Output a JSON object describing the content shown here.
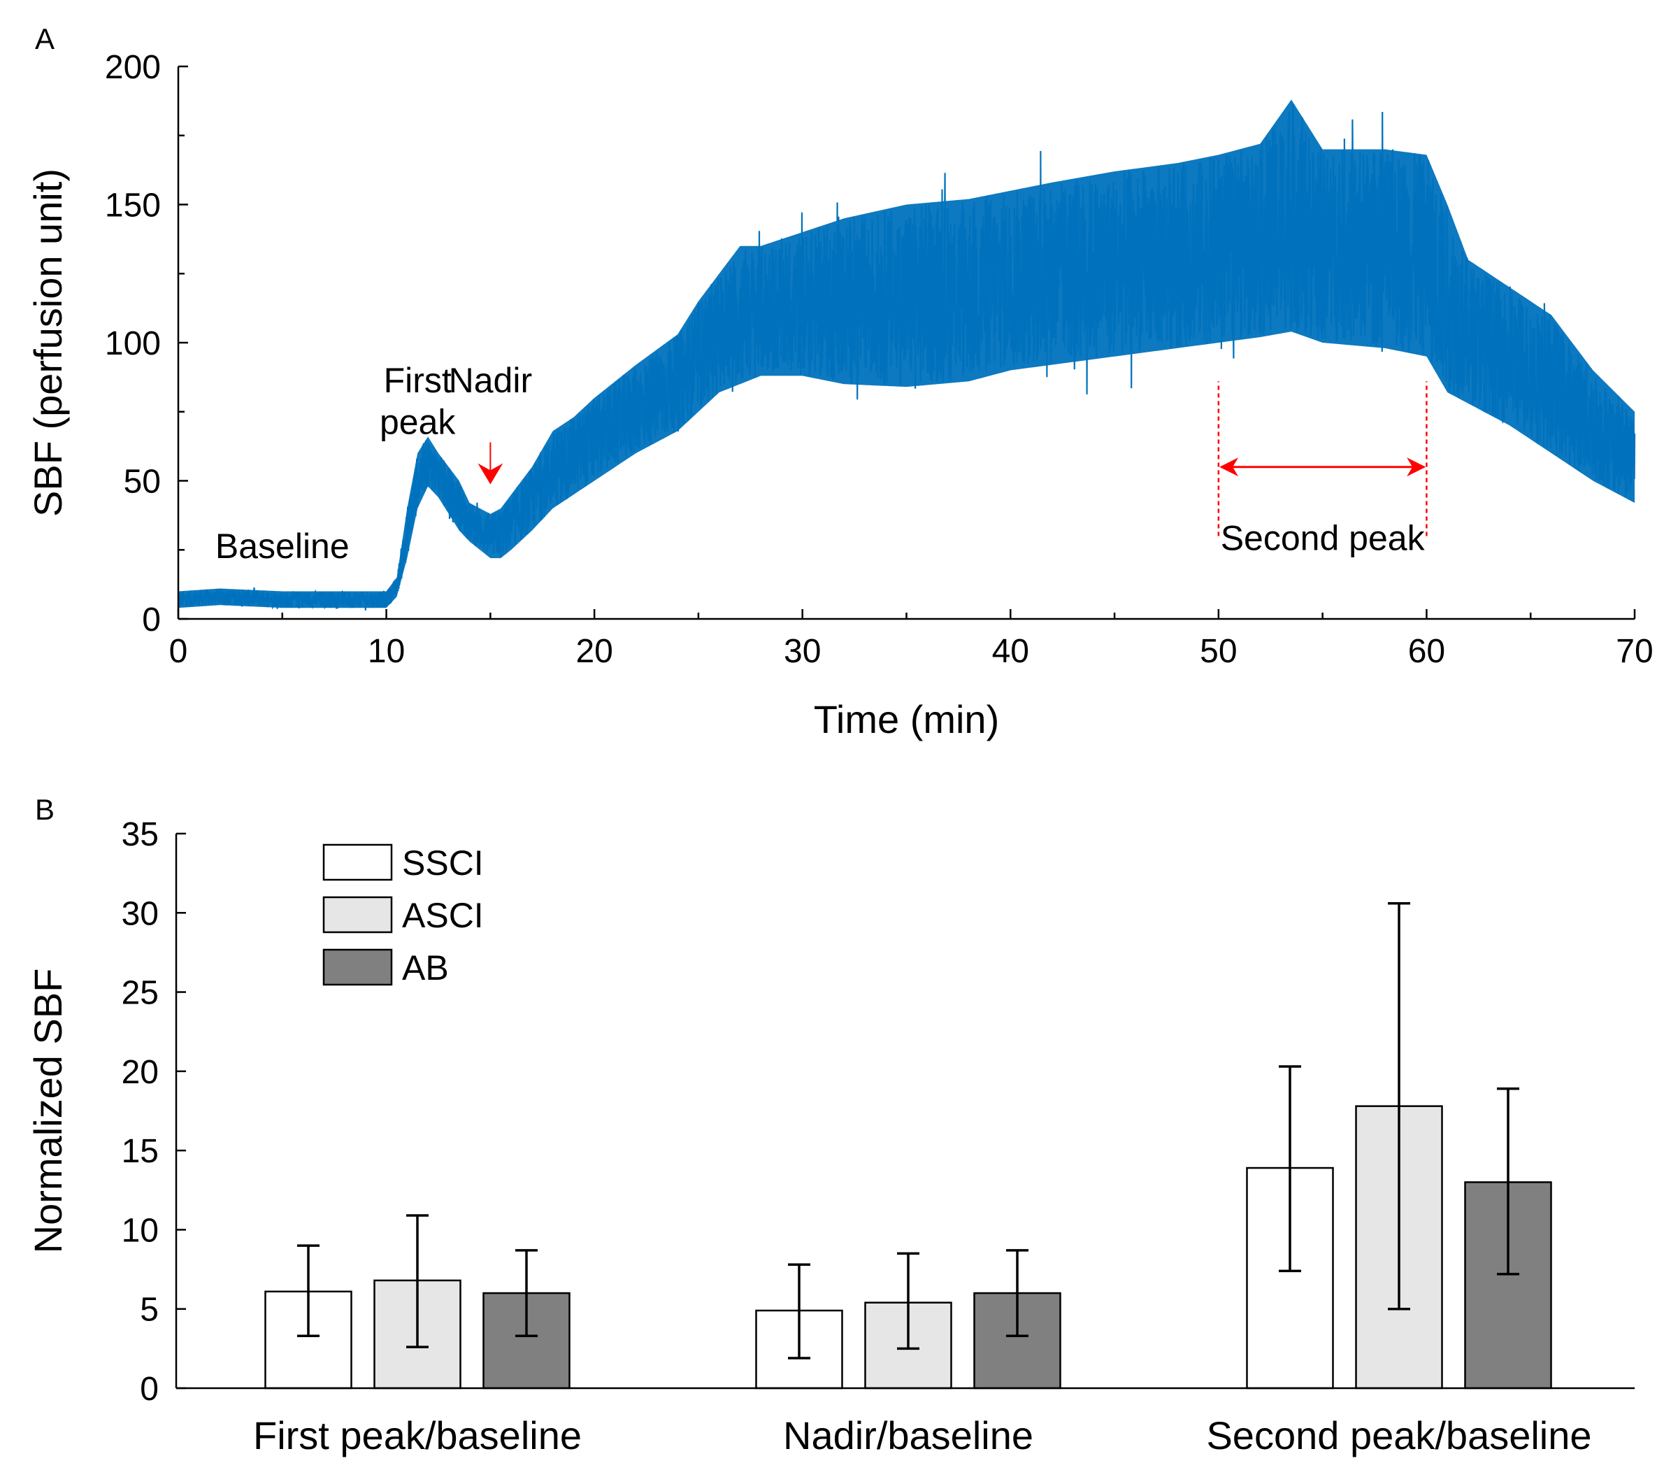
{
  "chart_data": [
    {
      "panel": "A",
      "type": "line",
      "xlabel": "Time (min)",
      "ylabel": "SBF (perfusion unit)",
      "xlim": [
        0,
        70
      ],
      "ylim": [
        0,
        200
      ],
      "xticks": [
        0,
        10,
        20,
        30,
        40,
        50,
        60,
        70
      ],
      "yticks": [
        0,
        50,
        100,
        150,
        200
      ],
      "grid": false,
      "series": [
        {
          "name": "SBF",
          "color": "#0072BD",
          "envelope": {
            "x": [
              0,
              2,
              5,
              8,
              10,
              10.5,
              11,
              11.5,
              12,
              12.5,
              13,
              13.5,
              14,
              15,
              15.5,
              16,
              17,
              18,
              19,
              20,
              22,
              24,
              25,
              26,
              27,
              28,
              30,
              32,
              35,
              38,
              40,
              42,
              45,
              48,
              50,
              52,
              53.5,
              55,
              58,
              60,
              61,
              62,
              64,
              66,
              68,
              70
            ],
            "upper": [
              10,
              11,
              10,
              10,
              10,
              15,
              40,
              60,
              66,
              60,
              55,
              50,
              42,
              38,
              40,
              45,
              55,
              68,
              73,
              80,
              92,
              103,
              115,
              125,
              135,
              135,
              140,
              145,
              150,
              152,
              155,
              158,
              162,
              165,
              168,
              172,
              188,
              170,
              170,
              168,
              150,
              130,
              120,
              110,
              90,
              75
            ],
            "lower": [
              4,
              5,
              4,
              4,
              4,
              8,
              22,
              40,
              48,
              44,
              38,
              32,
              28,
              22,
              22,
              25,
              32,
              40,
              45,
              50,
              60,
              68,
              75,
              82,
              85,
              88,
              88,
              85,
              84,
              86,
              90,
              92,
              95,
              98,
              100,
              102,
              104,
              100,
              98,
              95,
              82,
              78,
              70,
              60,
              50,
              42
            ]
          }
        }
      ],
      "annotations": [
        {
          "text": "Baseline",
          "x": 5,
          "y": 22
        },
        {
          "text": "First",
          "x": 11.5,
          "y": 82
        },
        {
          "text": "peak",
          "x": 11.5,
          "y": 67
        },
        {
          "text": "Nadir",
          "x": 15,
          "y": 82
        },
        {
          "text": "Second peak",
          "x": 55,
          "y": 25
        }
      ],
      "markers": [
        {
          "type": "arrowhead",
          "x": 15,
          "y": 50,
          "color": "#FF0000"
        },
        {
          "type": "vline",
          "x": 50,
          "y": [
            30,
            86
          ],
          "color": "#FF0000",
          "style": "dashed"
        },
        {
          "type": "vline",
          "x": 60,
          "y": [
            30,
            86
          ],
          "color": "#FF0000",
          "style": "dashed"
        },
        {
          "type": "double-arrow",
          "x": [
            50,
            60
          ],
          "y": 55,
          "color": "#FF0000"
        }
      ]
    },
    {
      "panel": "B",
      "type": "bar",
      "ylabel": "Normalized SBF",
      "ylim": [
        0,
        35
      ],
      "yticks": [
        0,
        5,
        10,
        15,
        20,
        25,
        30,
        35
      ],
      "categories": [
        "First peak/baseline",
        "Nadir/baseline",
        "Second peak/baseline"
      ],
      "series": [
        {
          "name": "SSCI",
          "color": "#FFFFFF",
          "values": [
            6.1,
            4.9,
            13.9
          ],
          "err_low": [
            3.3,
            1.9,
            7.4
          ],
          "err_high": [
            9.0,
            7.8,
            20.3
          ]
        },
        {
          "name": "ASCI",
          "color": "#E6E6E6",
          "values": [
            6.8,
            5.4,
            17.8
          ],
          "err_low": [
            2.6,
            2.5,
            5.0
          ],
          "err_high": [
            10.9,
            8.5,
            30.6
          ]
        },
        {
          "name": "AB",
          "color": "#808080",
          "values": [
            6.0,
            6.0,
            13.0
          ],
          "err_low": [
            3.3,
            3.3,
            7.2
          ],
          "err_high": [
            8.7,
            8.7,
            18.9
          ]
        }
      ],
      "legend": {
        "entries": [
          "SSCI",
          "ASCI",
          "AB"
        ],
        "position": "top-left"
      }
    }
  ]
}
